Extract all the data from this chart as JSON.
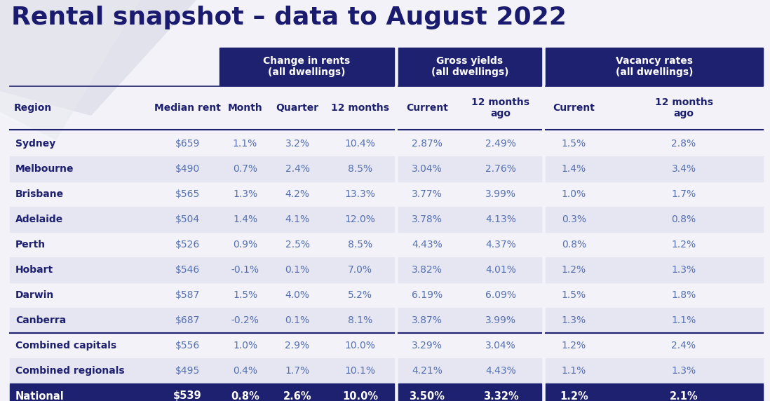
{
  "title": "Rental snapshot – data to August 2022",
  "title_color": "#1a1a6e",
  "background_color": "#f2f2f8",
  "header_bg_color": "#1e2070",
  "header_text_color": "#ffffff",
  "col_header_color": "#1e2070",
  "row_odd_color": "#ffffff",
  "row_even_color": "#e6e6f2",
  "national_row_color": "#1e2070",
  "national_text_color": "#ffffff",
  "separator_color": "#1e2070",
  "data_text_color": "#5570b0",
  "region_text_color": "#1e2070",
  "col_headers": [
    "Region",
    "Median rent",
    "Month",
    "Quarter",
    "12 months",
    "Current",
    "12 months\nago",
    "Current",
    "12 months\nago"
  ],
  "rows": [
    [
      "Sydney",
      "$659",
      "1.1%",
      "3.2%",
      "10.4%",
      "2.87%",
      "2.49%",
      "1.5%",
      "2.8%"
    ],
    [
      "Melbourne",
      "$490",
      "0.7%",
      "2.4%",
      "8.5%",
      "3.04%",
      "2.76%",
      "1.4%",
      "3.4%"
    ],
    [
      "Brisbane",
      "$565",
      "1.3%",
      "4.2%",
      "13.3%",
      "3.77%",
      "3.99%",
      "1.0%",
      "1.7%"
    ],
    [
      "Adelaide",
      "$504",
      "1.4%",
      "4.1%",
      "12.0%",
      "3.78%",
      "4.13%",
      "0.3%",
      "0.8%"
    ],
    [
      "Perth",
      "$526",
      "0.9%",
      "2.5%",
      "8.5%",
      "4.43%",
      "4.37%",
      "0.8%",
      "1.2%"
    ],
    [
      "Hobart",
      "$546",
      "-0.1%",
      "0.1%",
      "7.0%",
      "3.82%",
      "4.01%",
      "1.2%",
      "1.3%"
    ],
    [
      "Darwin",
      "$587",
      "1.5%",
      "4.0%",
      "5.2%",
      "6.19%",
      "6.09%",
      "1.5%",
      "1.8%"
    ],
    [
      "Canberra",
      "$687",
      "-0.2%",
      "0.1%",
      "8.1%",
      "3.87%",
      "3.99%",
      "1.3%",
      "1.1%"
    ],
    [
      "Combined capitals",
      "$556",
      "1.0%",
      "2.9%",
      "10.0%",
      "3.29%",
      "3.04%",
      "1.2%",
      "2.4%"
    ],
    [
      "Combined regionals",
      "$495",
      "0.4%",
      "1.7%",
      "10.1%",
      "4.21%",
      "4.43%",
      "1.1%",
      "1.3%"
    ],
    [
      "National",
      "$539",
      "0.8%",
      "2.6%",
      "10.0%",
      "3.50%",
      "3.32%",
      "1.2%",
      "2.1%"
    ]
  ],
  "figsize": [
    10.98,
    5.72
  ],
  "dpi": 100
}
